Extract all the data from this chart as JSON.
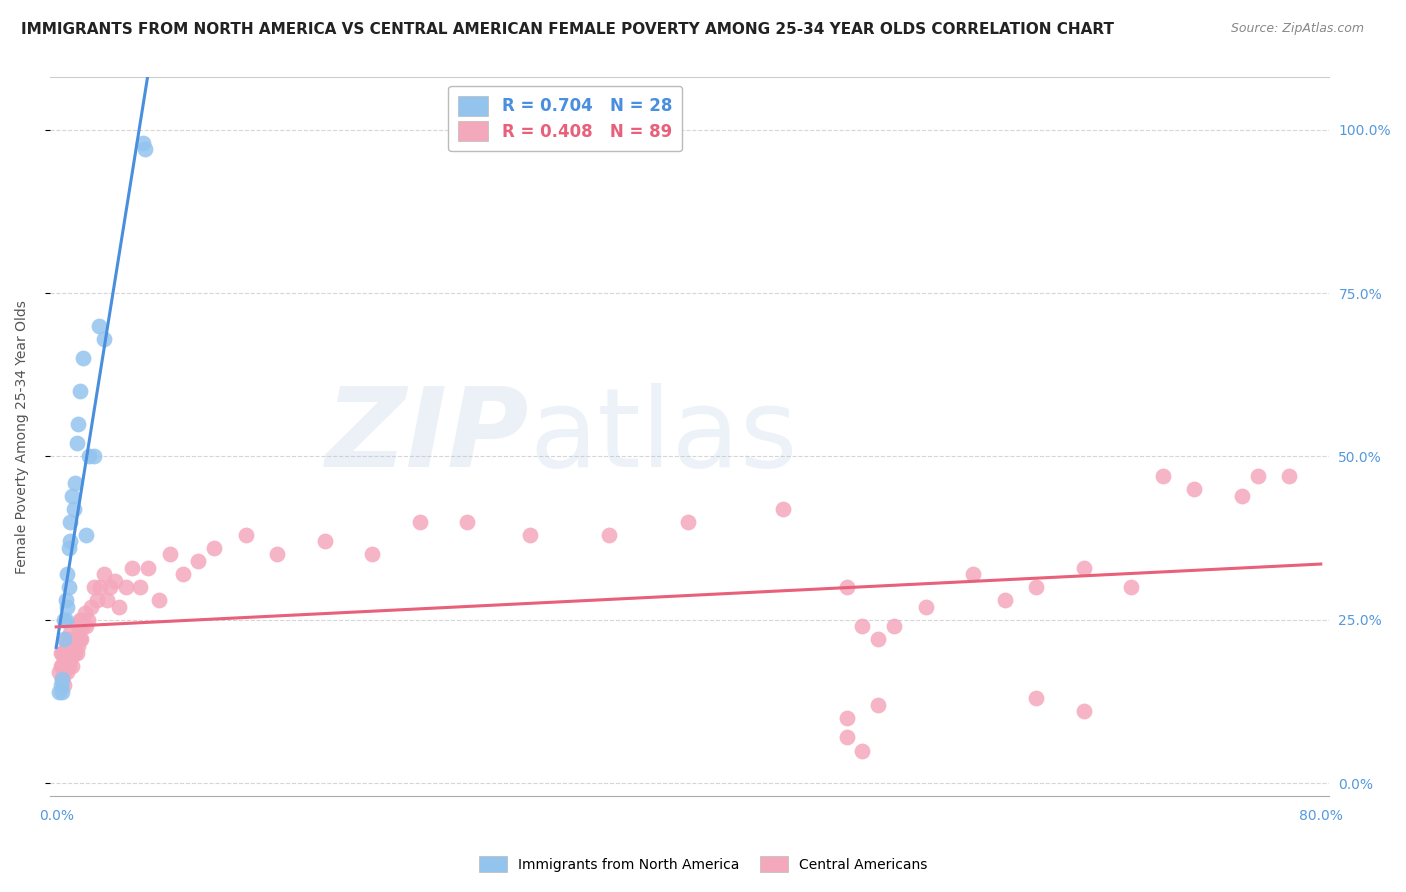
{
  "title": "IMMIGRANTS FROM NORTH AMERICA VS CENTRAL AMERICAN FEMALE POVERTY AMONG 25-34 YEAR OLDS CORRELATION CHART",
  "source": "Source: ZipAtlas.com",
  "ylabel": "Female Poverty Among 25-34 Year Olds",
  "xlim": [
    -0.004,
    0.805
  ],
  "ylim": [
    -0.02,
    1.08
  ],
  "xticks": [
    0.0,
    0.1,
    0.2,
    0.3,
    0.4,
    0.5,
    0.6,
    0.7,
    0.8
  ],
  "yticks": [
    0.0,
    0.25,
    0.5,
    0.75,
    1.0
  ],
  "ytick_labels_right": [
    "0.0%",
    "25.0%",
    "50.0%",
    "75.0%",
    "100.0%"
  ],
  "blue_color": "#93C4EE",
  "pink_color": "#F4A8BC",
  "blue_line_color": "#4A8FDD",
  "pink_line_color": "#E8607A",
  "axis_color": "#5599DD",
  "grid_color": "#CCCCCC",
  "legend_R_blue": "R = 0.704",
  "legend_N_blue": "N = 28",
  "legend_R_pink": "R = 0.408",
  "legend_N_pink": "N = 89",
  "blue_x": [
    0.002,
    0.003,
    0.004,
    0.004,
    0.005,
    0.005,
    0.006,
    0.006,
    0.007,
    0.007,
    0.008,
    0.008,
    0.009,
    0.009,
    0.01,
    0.011,
    0.012,
    0.013,
    0.014,
    0.015,
    0.017,
    0.019,
    0.021,
    0.024,
    0.027,
    0.03,
    0.055,
    0.056
  ],
  "blue_y": [
    0.14,
    0.15,
    0.14,
    0.16,
    0.22,
    0.25,
    0.25,
    0.28,
    0.27,
    0.32,
    0.3,
    0.36,
    0.37,
    0.4,
    0.44,
    0.42,
    0.46,
    0.52,
    0.55,
    0.6,
    0.65,
    0.38,
    0.5,
    0.5,
    0.7,
    0.68,
    0.98,
    0.97
  ],
  "pink_x": [
    0.002,
    0.003,
    0.003,
    0.004,
    0.004,
    0.004,
    0.005,
    0.005,
    0.005,
    0.006,
    0.006,
    0.006,
    0.007,
    0.007,
    0.007,
    0.008,
    0.008,
    0.008,
    0.009,
    0.009,
    0.009,
    0.01,
    0.01,
    0.01,
    0.011,
    0.011,
    0.012,
    0.012,
    0.013,
    0.013,
    0.014,
    0.014,
    0.015,
    0.015,
    0.016,
    0.016,
    0.017,
    0.018,
    0.019,
    0.02,
    0.022,
    0.024,
    0.026,
    0.028,
    0.03,
    0.032,
    0.034,
    0.037,
    0.04,
    0.044,
    0.048,
    0.053,
    0.058,
    0.065,
    0.072,
    0.08,
    0.09,
    0.1,
    0.12,
    0.14,
    0.17,
    0.2,
    0.23,
    0.26,
    0.3,
    0.35,
    0.4,
    0.46,
    0.5,
    0.51,
    0.52,
    0.53,
    0.55,
    0.58,
    0.6,
    0.62,
    0.65,
    0.68,
    0.7,
    0.72,
    0.75,
    0.76,
    0.78,
    0.62,
    0.65,
    0.5,
    0.51,
    0.5,
    0.52
  ],
  "pink_y": [
    0.17,
    0.18,
    0.2,
    0.16,
    0.18,
    0.2,
    0.15,
    0.17,
    0.19,
    0.18,
    0.2,
    0.22,
    0.17,
    0.19,
    0.21,
    0.18,
    0.2,
    0.22,
    0.19,
    0.21,
    0.23,
    0.18,
    0.2,
    0.22,
    0.2,
    0.22,
    0.2,
    0.22,
    0.2,
    0.22,
    0.21,
    0.24,
    0.22,
    0.25,
    0.22,
    0.25,
    0.24,
    0.26,
    0.24,
    0.25,
    0.27,
    0.3,
    0.28,
    0.3,
    0.32,
    0.28,
    0.3,
    0.31,
    0.27,
    0.3,
    0.33,
    0.3,
    0.33,
    0.28,
    0.35,
    0.32,
    0.34,
    0.36,
    0.38,
    0.35,
    0.37,
    0.35,
    0.4,
    0.4,
    0.38,
    0.38,
    0.4,
    0.42,
    0.3,
    0.24,
    0.22,
    0.24,
    0.27,
    0.32,
    0.28,
    0.3,
    0.33,
    0.3,
    0.47,
    0.45,
    0.44,
    0.47,
    0.47,
    0.13,
    0.11,
    0.07,
    0.05,
    0.1,
    0.12
  ],
  "legend_label_blue": "Immigrants from North America",
  "legend_label_pink": "Central Americans",
  "title_fontsize": 11,
  "label_fontsize": 10
}
